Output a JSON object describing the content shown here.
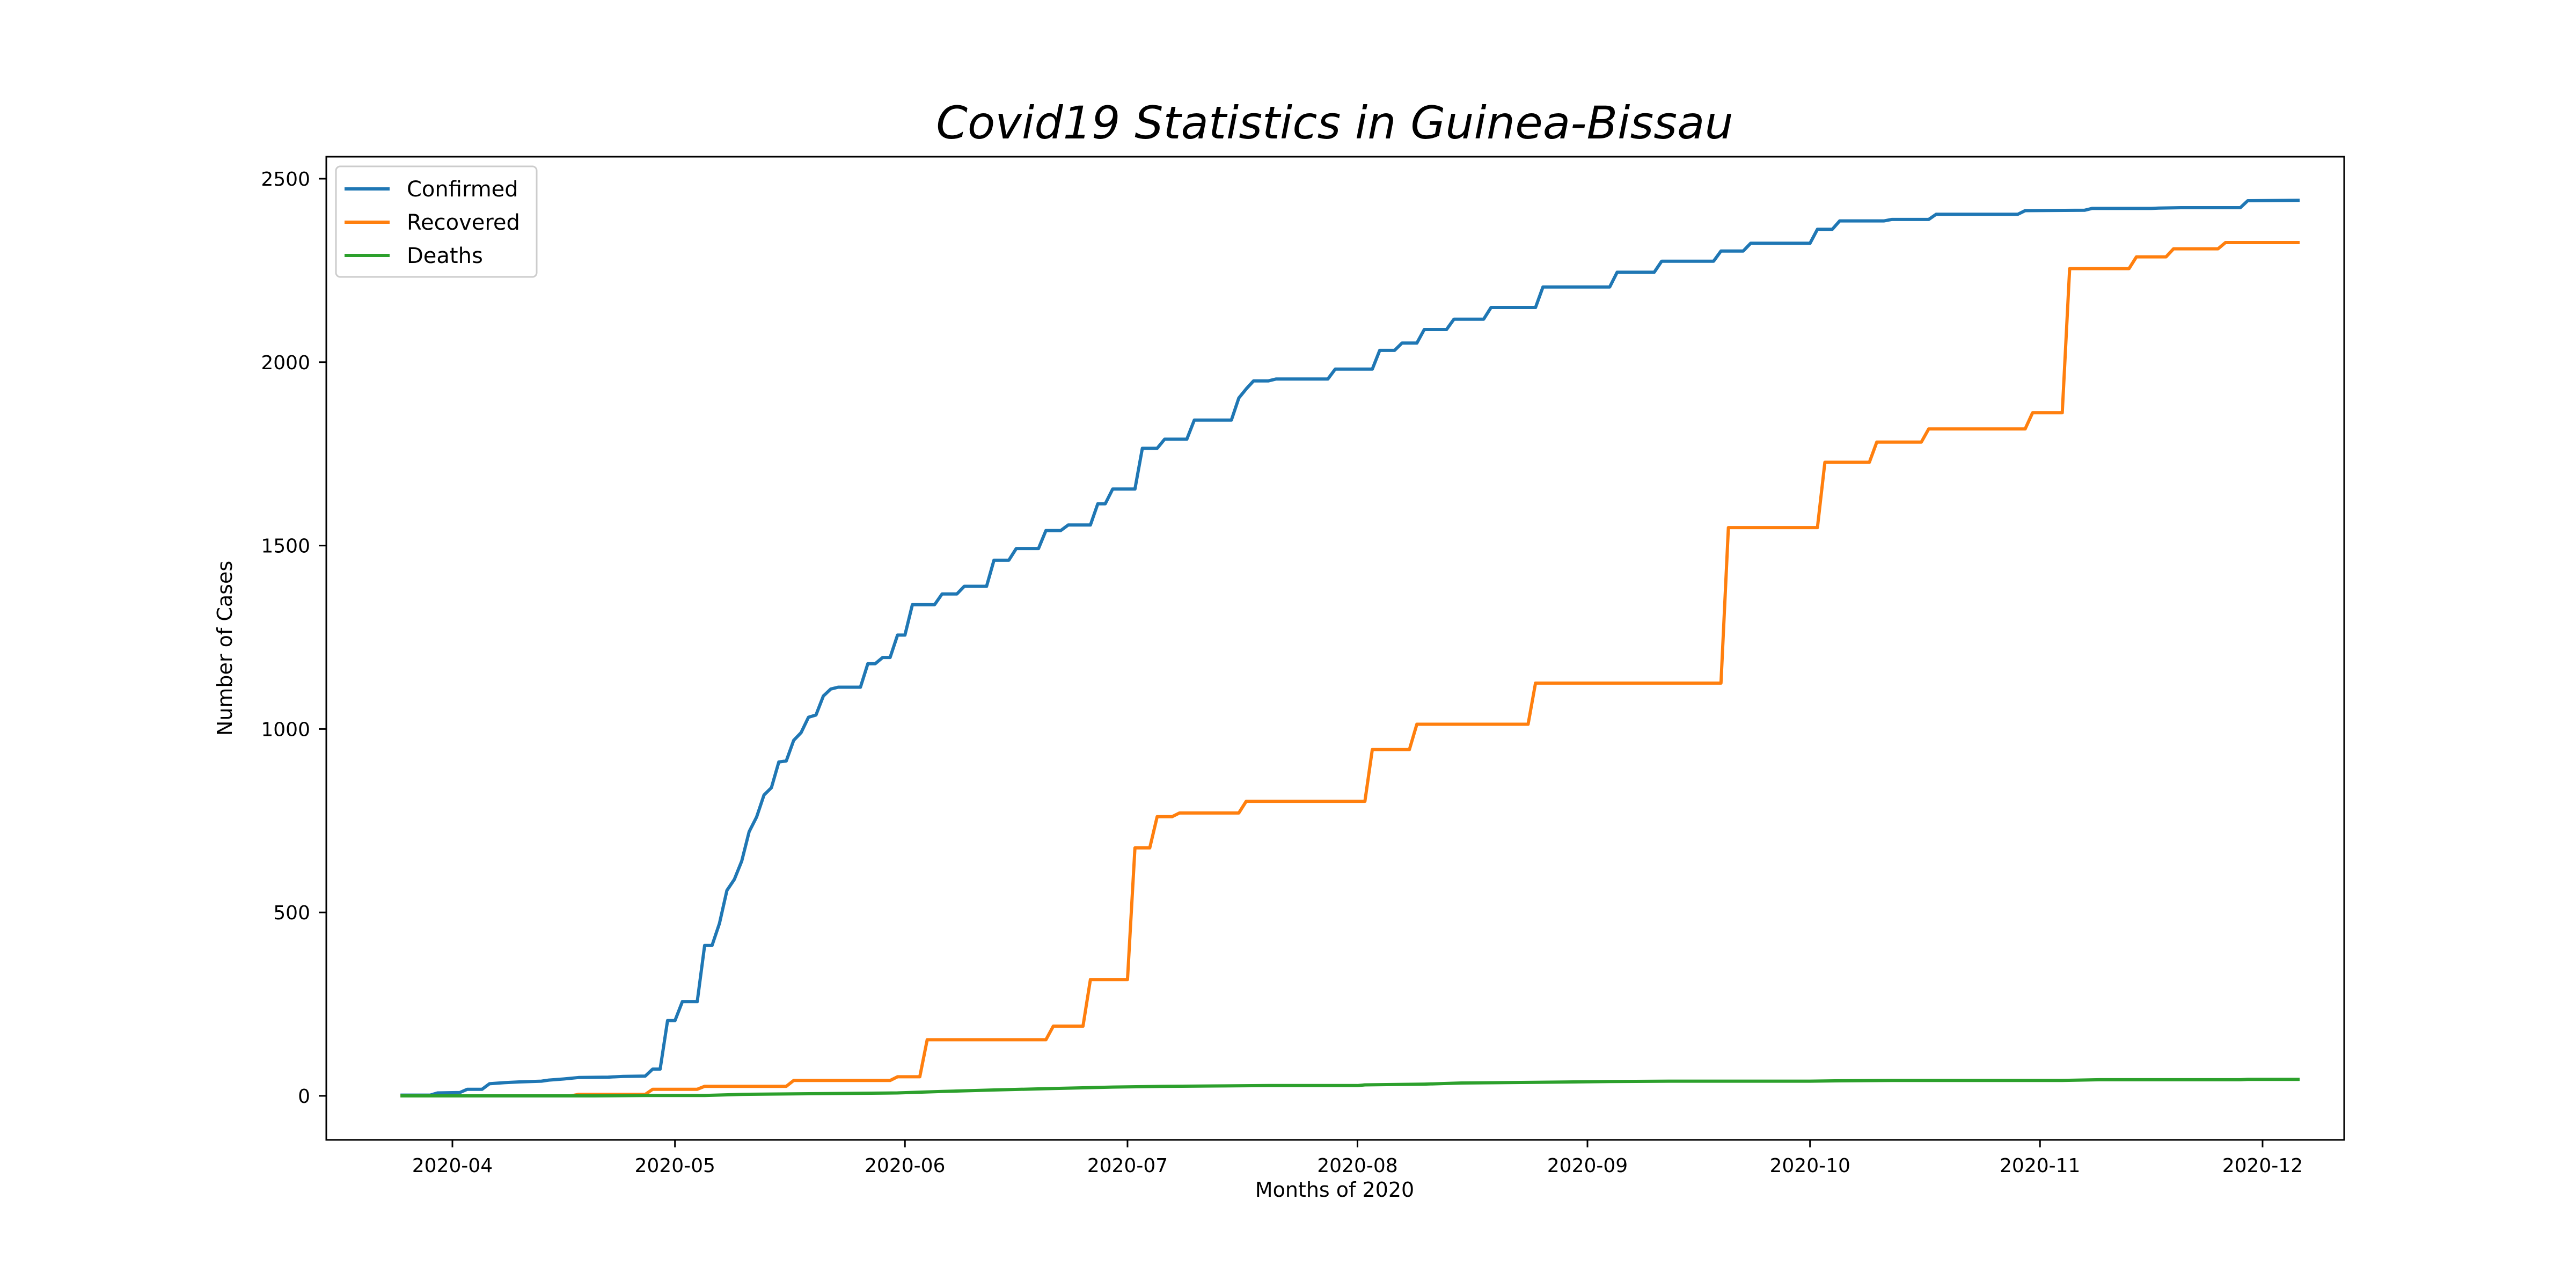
{
  "chart_data": {
    "type": "line",
    "title": "Covid19 Statistics in Guinea-Bissau",
    "xlabel": "Months of 2020",
    "ylabel": "Number of Cases",
    "x_axis": "date",
    "xlim": [
      "2020-03-15",
      "2020-12-12"
    ],
    "ylim": [
      -120,
      2560
    ],
    "y_ticks": [
      0,
      500,
      1000,
      1500,
      2000,
      2500
    ],
    "x_ticks": [
      "2020-04-01",
      "2020-05-01",
      "2020-06-01",
      "2020-07-01",
      "2020-08-01",
      "2020-09-01",
      "2020-10-01",
      "2020-11-01",
      "2020-12-01"
    ],
    "x_tick_labels": [
      "2020-04",
      "2020-05",
      "2020-06",
      "2020-07",
      "2020-08",
      "2020-09",
      "2020-10",
      "2020-11",
      "2020-12"
    ],
    "grid": false,
    "legend_position": "top-left",
    "series": [
      {
        "name": "Confirmed",
        "color": "#1f77b4",
        "points": [
          [
            "2020-03-25",
            2
          ],
          [
            "2020-03-29",
            2
          ],
          [
            "2020-03-30",
            8
          ],
          [
            "2020-04-02",
            9
          ],
          [
            "2020-04-03",
            18
          ],
          [
            "2020-04-05",
            18
          ],
          [
            "2020-04-06",
            33
          ],
          [
            "2020-04-08",
            36
          ],
          [
            "2020-04-10",
            38
          ],
          [
            "2020-04-13",
            40
          ],
          [
            "2020-04-14",
            43
          ],
          [
            "2020-04-16",
            46
          ],
          [
            "2020-04-18",
            50
          ],
          [
            "2020-04-22",
            51
          ],
          [
            "2020-04-24",
            53
          ],
          [
            "2020-04-27",
            54
          ],
          [
            "2020-04-28",
            73
          ],
          [
            "2020-04-29",
            73
          ],
          [
            "2020-04-30",
            205
          ],
          [
            "2020-05-01",
            205
          ],
          [
            "2020-05-02",
            257
          ],
          [
            "2020-05-04",
            257
          ],
          [
            "2020-05-05",
            410
          ],
          [
            "2020-05-06",
            410
          ],
          [
            "2020-05-07",
            470
          ],
          [
            "2020-05-08",
            560
          ],
          [
            "2020-05-09",
            590
          ],
          [
            "2020-05-10",
            640
          ],
          [
            "2020-05-11",
            720
          ],
          [
            "2020-05-12",
            760
          ],
          [
            "2020-05-13",
            820
          ],
          [
            "2020-05-14",
            840
          ],
          [
            "2020-05-15",
            910
          ],
          [
            "2020-05-16",
            913
          ],
          [
            "2020-05-17",
            969
          ],
          [
            "2020-05-18",
            990
          ],
          [
            "2020-05-19",
            1032
          ],
          [
            "2020-05-20",
            1038
          ],
          [
            "2020-05-21",
            1090
          ],
          [
            "2020-05-22",
            1109
          ],
          [
            "2020-05-23",
            1114
          ],
          [
            "2020-05-26",
            1114
          ],
          [
            "2020-05-27",
            1178
          ],
          [
            "2020-05-28",
            1178
          ],
          [
            "2020-05-29",
            1195
          ],
          [
            "2020-05-30",
            1195
          ],
          [
            "2020-05-31",
            1256
          ],
          [
            "2020-06-01",
            1256
          ],
          [
            "2020-06-02",
            1339
          ],
          [
            "2020-06-05",
            1339
          ],
          [
            "2020-06-06",
            1368
          ],
          [
            "2020-06-08",
            1368
          ],
          [
            "2020-06-09",
            1389
          ],
          [
            "2020-06-12",
            1389
          ],
          [
            "2020-06-13",
            1460
          ],
          [
            "2020-06-15",
            1460
          ],
          [
            "2020-06-16",
            1492
          ],
          [
            "2020-06-19",
            1492
          ],
          [
            "2020-06-20",
            1541
          ],
          [
            "2020-06-22",
            1541
          ],
          [
            "2020-06-23",
            1556
          ],
          [
            "2020-06-26",
            1556
          ],
          [
            "2020-06-27",
            1614
          ],
          [
            "2020-06-28",
            1614
          ],
          [
            "2020-06-29",
            1654
          ],
          [
            "2020-07-02",
            1654
          ],
          [
            "2020-07-03",
            1765
          ],
          [
            "2020-07-05",
            1765
          ],
          [
            "2020-07-06",
            1790
          ],
          [
            "2020-07-09",
            1790
          ],
          [
            "2020-07-10",
            1842
          ],
          [
            "2020-07-15",
            1842
          ],
          [
            "2020-07-16",
            1902
          ],
          [
            "2020-07-17",
            1927
          ],
          [
            "2020-07-18",
            1949
          ],
          [
            "2020-07-20",
            1949
          ],
          [
            "2020-07-21",
            1954
          ],
          [
            "2020-07-28",
            1954
          ],
          [
            "2020-07-29",
            1981
          ],
          [
            "2020-08-03",
            1981
          ],
          [
            "2020-08-04",
            2032
          ],
          [
            "2020-08-06",
            2032
          ],
          [
            "2020-08-07",
            2052
          ],
          [
            "2020-08-09",
            2052
          ],
          [
            "2020-08-10",
            2089
          ],
          [
            "2020-08-13",
            2089
          ],
          [
            "2020-08-14",
            2117
          ],
          [
            "2020-08-18",
            2117
          ],
          [
            "2020-08-19",
            2149
          ],
          [
            "2020-08-25",
            2149
          ],
          [
            "2020-08-26",
            2205
          ],
          [
            "2020-09-04",
            2205
          ],
          [
            "2020-09-05",
            2245
          ],
          [
            "2020-09-10",
            2245
          ],
          [
            "2020-09-11",
            2275
          ],
          [
            "2020-09-18",
            2275
          ],
          [
            "2020-09-19",
            2303
          ],
          [
            "2020-09-22",
            2303
          ],
          [
            "2020-09-23",
            2324
          ],
          [
            "2020-10-01",
            2324
          ],
          [
            "2020-10-02",
            2362
          ],
          [
            "2020-10-04",
            2362
          ],
          [
            "2020-10-05",
            2385
          ],
          [
            "2020-10-11",
            2385
          ],
          [
            "2020-10-12",
            2389
          ],
          [
            "2020-10-17",
            2389
          ],
          [
            "2020-10-18",
            2403
          ],
          [
            "2020-10-29",
            2403
          ],
          [
            "2020-10-30",
            2413
          ],
          [
            "2020-11-07",
            2414
          ],
          [
            "2020-11-08",
            2419
          ],
          [
            "2020-11-16",
            2419
          ],
          [
            "2020-11-17",
            2420
          ],
          [
            "2020-11-20",
            2421
          ],
          [
            "2020-11-28",
            2421
          ],
          [
            "2020-11-29",
            2440
          ],
          [
            "2020-12-06",
            2441
          ]
        ]
      },
      {
        "name": "Recovered",
        "color": "#ff7f0e",
        "points": [
          [
            "2020-03-25",
            0
          ],
          [
            "2020-04-17",
            0
          ],
          [
            "2020-04-18",
            4
          ],
          [
            "2020-04-27",
            4
          ],
          [
            "2020-04-28",
            18
          ],
          [
            "2020-05-04",
            18
          ],
          [
            "2020-05-05",
            26
          ],
          [
            "2020-05-16",
            26
          ],
          [
            "2020-05-17",
            42
          ],
          [
            "2020-05-30",
            42
          ],
          [
            "2020-05-31",
            52
          ],
          [
            "2020-06-03",
            52
          ],
          [
            "2020-06-04",
            153
          ],
          [
            "2020-06-20",
            153
          ],
          [
            "2020-06-21",
            190
          ],
          [
            "2020-06-25",
            190
          ],
          [
            "2020-06-26",
            317
          ],
          [
            "2020-07-01",
            317
          ],
          [
            "2020-07-02",
            676
          ],
          [
            "2020-07-04",
            676
          ],
          [
            "2020-07-05",
            761
          ],
          [
            "2020-07-07",
            761
          ],
          [
            "2020-07-08",
            771
          ],
          [
            "2020-07-16",
            771
          ],
          [
            "2020-07-17",
            803
          ],
          [
            "2020-08-02",
            803
          ],
          [
            "2020-08-03",
            944
          ],
          [
            "2020-08-08",
            944
          ],
          [
            "2020-08-09",
            1013
          ],
          [
            "2020-08-24",
            1013
          ],
          [
            "2020-08-25",
            1125
          ],
          [
            "2020-09-19",
            1125
          ],
          [
            "2020-09-20",
            1549
          ],
          [
            "2020-10-02",
            1549
          ],
          [
            "2020-10-03",
            1727
          ],
          [
            "2020-10-09",
            1727
          ],
          [
            "2020-10-10",
            1782
          ],
          [
            "2020-10-16",
            1782
          ],
          [
            "2020-10-17",
            1818
          ],
          [
            "2020-10-30",
            1818
          ],
          [
            "2020-10-31",
            1862
          ],
          [
            "2020-11-04",
            1862
          ],
          [
            "2020-11-05",
            2255
          ],
          [
            "2020-11-13",
            2255
          ],
          [
            "2020-11-14",
            2287
          ],
          [
            "2020-11-18",
            2287
          ],
          [
            "2020-11-19",
            2309
          ],
          [
            "2020-11-25",
            2309
          ],
          [
            "2020-11-26",
            2326
          ],
          [
            "2020-12-06",
            2326
          ]
        ]
      },
      {
        "name": "Deaths",
        "color": "#2ca02c",
        "points": [
          [
            "2020-03-25",
            0
          ],
          [
            "2020-04-20",
            0
          ],
          [
            "2020-04-27",
            1
          ],
          [
            "2020-05-05",
            1
          ],
          [
            "2020-05-10",
            4
          ],
          [
            "2020-05-20",
            6
          ],
          [
            "2020-05-31",
            8
          ],
          [
            "2020-06-06",
            12
          ],
          [
            "2020-06-13",
            16
          ],
          [
            "2020-06-21",
            20
          ],
          [
            "2020-06-29",
            24
          ],
          [
            "2020-07-06",
            26
          ],
          [
            "2020-07-13",
            27
          ],
          [
            "2020-07-20",
            28
          ],
          [
            "2020-08-01",
            28
          ],
          [
            "2020-08-02",
            30
          ],
          [
            "2020-08-10",
            32
          ],
          [
            "2020-08-15",
            35
          ],
          [
            "2020-08-25",
            37
          ],
          [
            "2020-09-04",
            39
          ],
          [
            "2020-09-12",
            40
          ],
          [
            "2020-10-01",
            40
          ],
          [
            "2020-10-05",
            41
          ],
          [
            "2020-10-12",
            42
          ],
          [
            "2020-11-04",
            42
          ],
          [
            "2020-11-09",
            44
          ],
          [
            "2020-11-28",
            44
          ],
          [
            "2020-11-29",
            45
          ],
          [
            "2020-12-06",
            45
          ]
        ]
      }
    ]
  }
}
